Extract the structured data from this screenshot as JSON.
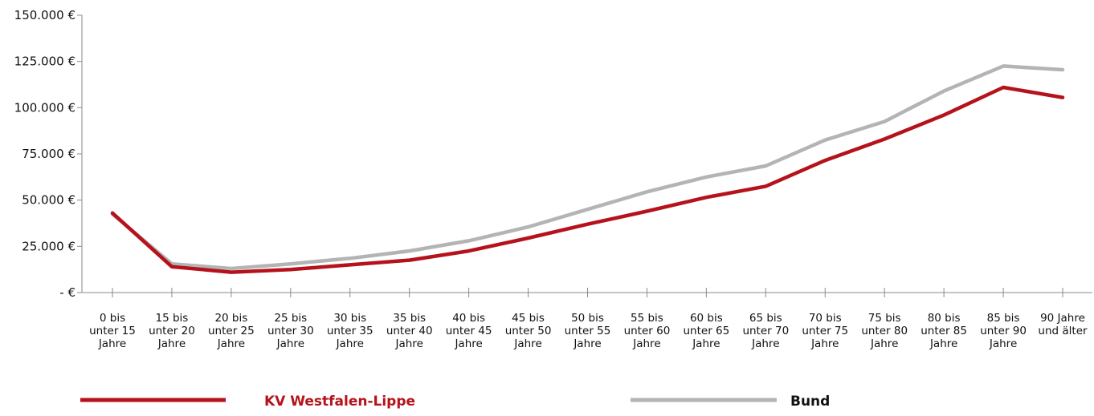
{
  "chart_data": {
    "type": "line",
    "title": "",
    "xlabel": "",
    "ylabel": "",
    "ylim": [
      0,
      150000
    ],
    "y_ticks": [
      0,
      25000,
      50000,
      75000,
      100000,
      125000,
      150000
    ],
    "y_tick_labels": [
      "- €",
      "25.000 €",
      "50.000 €",
      "75.000 €",
      "100.000 €",
      "125.000 €",
      "150.000 €"
    ],
    "grid": false,
    "legend_position": "bottom",
    "categories": [
      [
        "0 bis",
        "unter 15",
        "Jahre"
      ],
      [
        "15 bis",
        "unter 20",
        "Jahre"
      ],
      [
        "20 bis",
        "unter 25",
        "Jahre"
      ],
      [
        "25 bis",
        "unter 30",
        "Jahre"
      ],
      [
        "30 bis",
        "unter 35",
        "Jahre"
      ],
      [
        "35 bis",
        "unter 40",
        "Jahre"
      ],
      [
        "40 bis",
        "unter 45",
        "Jahre"
      ],
      [
        "45 bis",
        "unter 50",
        "Jahre"
      ],
      [
        "50 bis",
        "unter 55",
        "Jahre"
      ],
      [
        "55 bis",
        "unter 60",
        "Jahre"
      ],
      [
        "60 bis",
        "unter 65",
        "Jahre"
      ],
      [
        "65 bis",
        "unter 70",
        "Jahre"
      ],
      [
        "70 bis",
        "unter 75",
        "Jahre"
      ],
      [
        "75 bis",
        "unter 80",
        "Jahre"
      ],
      [
        "80 bis",
        "unter 85",
        "Jahre"
      ],
      [
        "85 bis",
        "unter 90",
        "Jahre"
      ],
      [
        "90 Jahre",
        "und älter"
      ]
    ],
    "series": [
      {
        "name": "KV Westfalen-Lippe",
        "color": "#b5121b",
        "values": [
          43000,
          14000,
          11000,
          12500,
          15000,
          17500,
          22500,
          29500,
          37000,
          44000,
          51500,
          57500,
          71500,
          83000,
          96000,
          111000,
          105500
        ]
      },
      {
        "name": "Bund",
        "color": "#b4b4b4",
        "values": [
          42500,
          15500,
          13000,
          15500,
          18500,
          22500,
          28000,
          35500,
          45000,
          54500,
          62500,
          68500,
          82500,
          92500,
          109000,
          122500,
          120500
        ]
      }
    ]
  }
}
